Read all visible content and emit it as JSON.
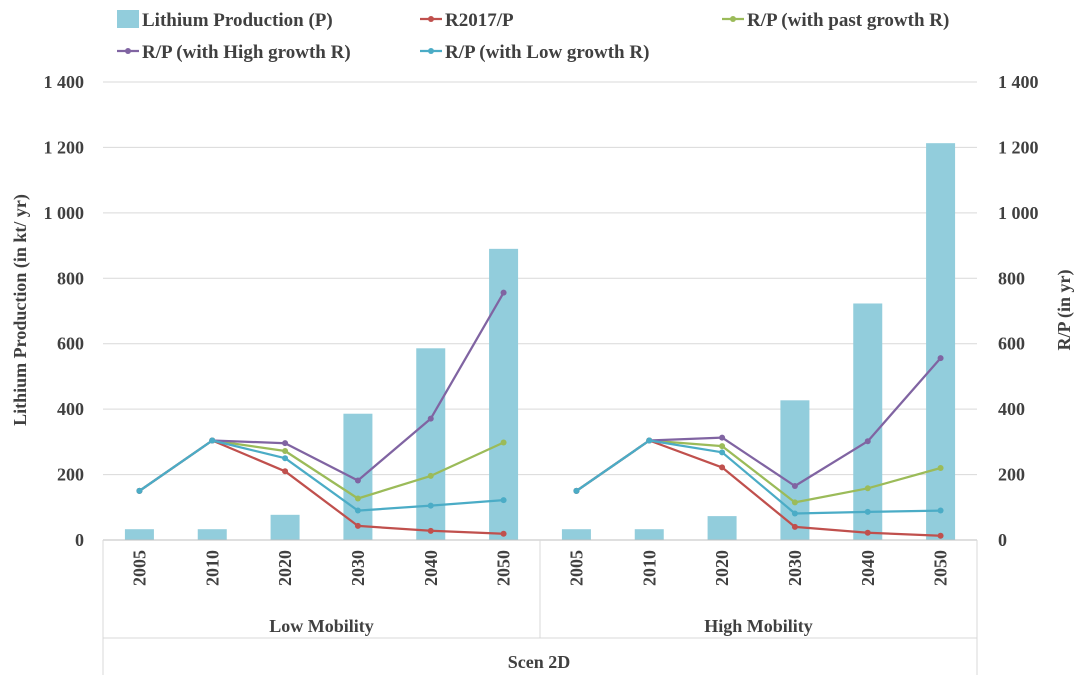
{
  "chart_data": {
    "type": "bar",
    "xlabel": "Scen 2D",
    "ylabel": "Lithium Production (in kt/ yr)",
    "y2label": "R/P (in yr)",
    "ylim": [
      0,
      1400
    ],
    "y2lim": [
      0,
      1400
    ],
    "yticks": [
      "0",
      "200",
      "400",
      "600",
      "800",
      "1 000",
      "1 200",
      "1 400"
    ],
    "y2ticks": [
      "0",
      "200",
      "400",
      "600",
      "800",
      "1 000",
      "1 200",
      "1 400"
    ],
    "yticks_values": [
      0,
      200,
      400,
      600,
      800,
      1000,
      1200,
      1400
    ],
    "grid": true,
    "legend_position": "top",
    "groups": [
      {
        "label": "Low Mobility",
        "categories": [
          "2005",
          "2010",
          "2020",
          "2030",
          "2040",
          "2050"
        ]
      },
      {
        "label": "High Mobility",
        "categories": [
          "2005",
          "2010",
          "2020",
          "2030",
          "2040",
          "2050"
        ]
      }
    ],
    "series": [
      {
        "name": "Lithium Production (P)",
        "kind": "bar",
        "color": "#92cddc",
        "values": [
          [
            33,
            33,
            77,
            386,
            586,
            890
          ],
          [
            33,
            33,
            73,
            427,
            723,
            1213
          ]
        ]
      },
      {
        "name": "R2017/P",
        "kind": "line",
        "color": "#c0504d",
        "values": [
          [
            150,
            304,
            210,
            43,
            28,
            19
          ],
          [
            150,
            304,
            222,
            40,
            22,
            13
          ]
        ]
      },
      {
        "name": "R/P (with past growth R)",
        "kind": "line",
        "color": "#9bbb59",
        "values": [
          [
            150,
            304,
            272,
            127,
            196,
            298
          ],
          [
            150,
            304,
            287,
            115,
            158,
            220
          ]
        ]
      },
      {
        "name": "R/P (with High growth R)",
        "kind": "line",
        "color": "#8064a2",
        "values": [
          [
            150,
            304,
            296,
            182,
            371,
            756
          ],
          [
            150,
            304,
            313,
            165,
            302,
            556
          ]
        ]
      },
      {
        "name": "R/P (with Low growth R)",
        "kind": "line",
        "color": "#4bacc6",
        "values": [
          [
            150,
            304,
            250,
            90,
            105,
            122
          ],
          [
            150,
            304,
            268,
            81,
            86,
            90
          ]
        ]
      }
    ]
  }
}
